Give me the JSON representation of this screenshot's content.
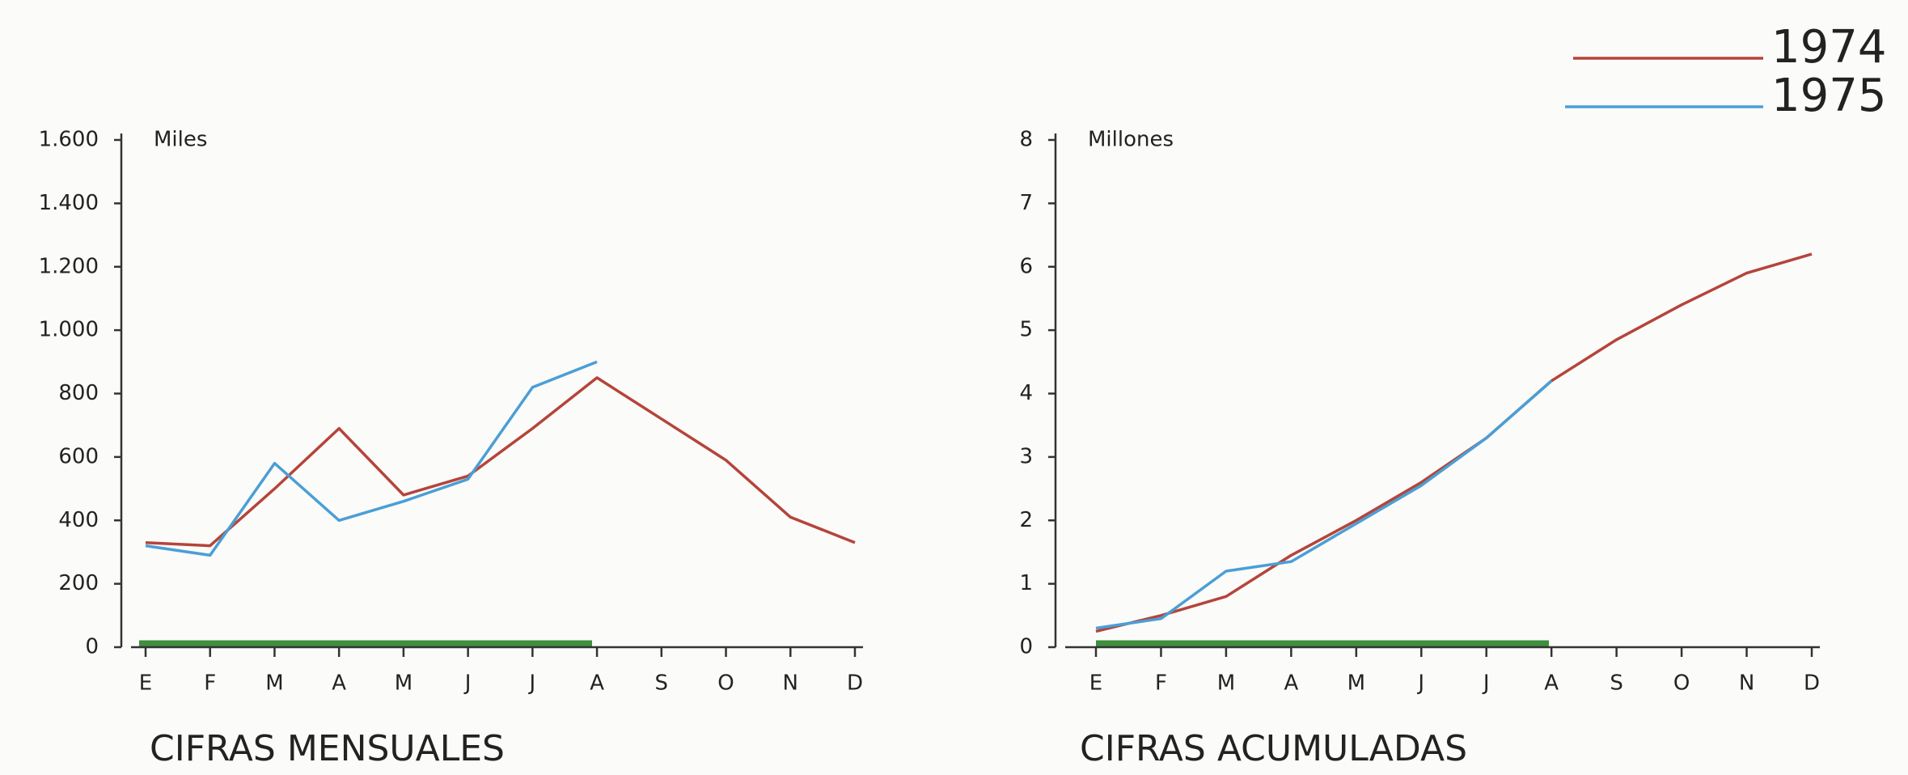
{
  "chart_data": [
    {
      "type": "line",
      "title": "CIFRAS MENSUALES",
      "ylabel": "Miles",
      "categories": [
        "E",
        "F",
        "M",
        "A",
        "M",
        "J",
        "J",
        "A",
        "S",
        "O",
        "N",
        "D"
      ],
      "series": [
        {
          "name": "1974",
          "color": "#b5443a",
          "values": [
            330,
            320,
            500,
            690,
            480,
            540,
            690,
            850,
            720,
            590,
            410,
            330
          ]
        },
        {
          "name": "1975",
          "color": "#4a9fd6",
          "values": [
            320,
            290,
            580,
            400,
            460,
            530,
            820,
            900,
            null,
            null,
            null,
            null
          ]
        }
      ],
      "ylim": [
        0,
        1600
      ],
      "yticks": [
        0,
        200,
        400,
        600,
        800,
        {
          "value": 1000,
          "label": "1.000"
        },
        {
          "value": 1200,
          "label": "1.200"
        },
        {
          "value": 1400,
          "label": "1.400"
        },
        {
          "value": 1600,
          "label": "1.600"
        }
      ]
    },
    {
      "type": "line",
      "title": "CIFRAS ACUMULADAS",
      "ylabel": "Millones",
      "categories": [
        "E",
        "F",
        "M",
        "A",
        "M",
        "J",
        "J",
        "A",
        "S",
        "O",
        "N",
        "D"
      ],
      "series": [
        {
          "color": "#b5443a",
          "values": [
            0.25,
            0.5,
            0.8,
            1.45,
            2.0,
            2.6,
            3.3,
            4.2,
            4.85,
            5.4,
            5.9,
            6.2
          ]
        },
        {
          "color": "#4a9fd6",
          "values": [
            0.3,
            0.45,
            1.2,
            1.35,
            1.95,
            2.55,
            3.3,
            4.2,
            null,
            null,
            null,
            null
          ]
        }
      ],
      "ylim": [
        0,
        8
      ],
      "yticks": [
        0,
        1,
        2,
        3,
        4,
        5,
        6,
        7,
        8
      ]
    }
  ]
}
